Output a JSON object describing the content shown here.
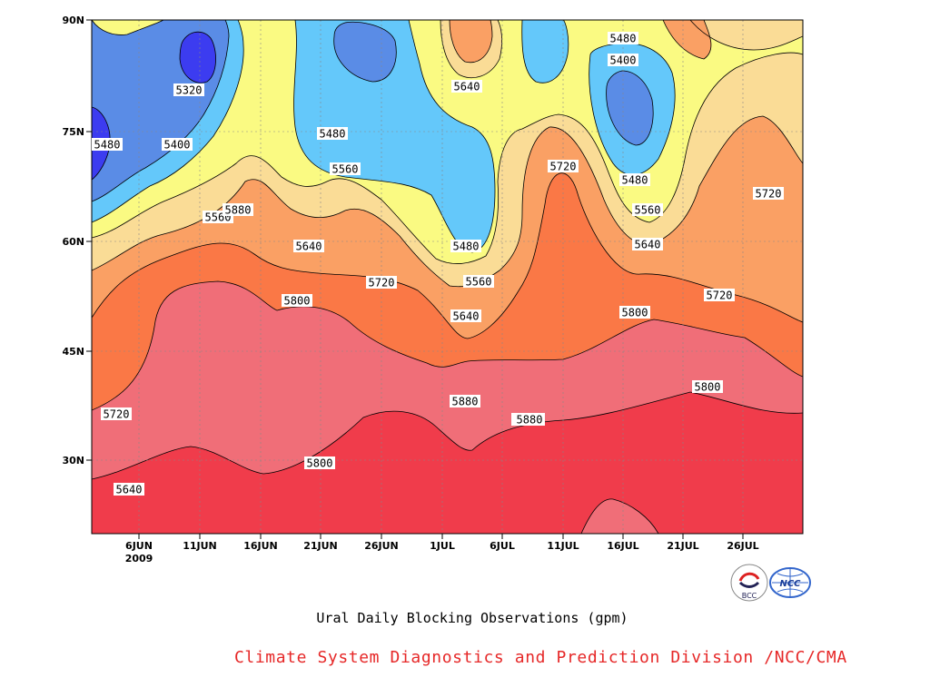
{
  "colors": {
    "c_lt5320": "#3c3cf0",
    "c_5320": "#5a8ce6",
    "c_5400": "#64c8fa",
    "c_5480": "#fafa82",
    "c_5560": "#fadc96",
    "c_5640": "#faa064",
    "c_5720": "#fa7846",
    "c_5800": "#f06e78",
    "c_5880": "#f03c4b",
    "credit": "#e62828"
  },
  "chart_data": {
    "type": "heatmap",
    "title": "",
    "xlabel": "",
    "ylabel": "",
    "x_ticks": [
      "6JUN",
      "11JUN",
      "16JUN",
      "21JUN",
      "26JUN",
      "1JUL",
      "6JUL",
      "11JUL",
      "16JUL",
      "21JUL",
      "26JUL"
    ],
    "x_year_label": "2009",
    "y_ticks": [
      "30N",
      "45N",
      "60N",
      "75N",
      "90N"
    ],
    "contour_levels": [
      5320,
      5400,
      5480,
      5560,
      5640,
      5720,
      5800,
      5880
    ],
    "contour_labels": [
      "5320",
      "5400",
      "5480",
      "5560",
      "5640",
      "5720",
      "5800",
      "5880",
      "5480",
      "5560",
      "5640",
      "5720",
      "5800",
      "5880",
      "5480",
      "5560",
      "5640",
      "5720",
      "5800",
      "5880",
      "5480",
      "5400",
      "5480",
      "5560",
      "5640",
      "5720",
      "5800",
      "5880",
      "5640",
      "5720"
    ]
  },
  "caption": "Ural Daily Blocking Observations (gpm)",
  "credit": "Climate System Diagnostics and Prediction Division /NCC/CMA",
  "logos": {
    "bcc": "BCC",
    "ncc": "NCC"
  }
}
